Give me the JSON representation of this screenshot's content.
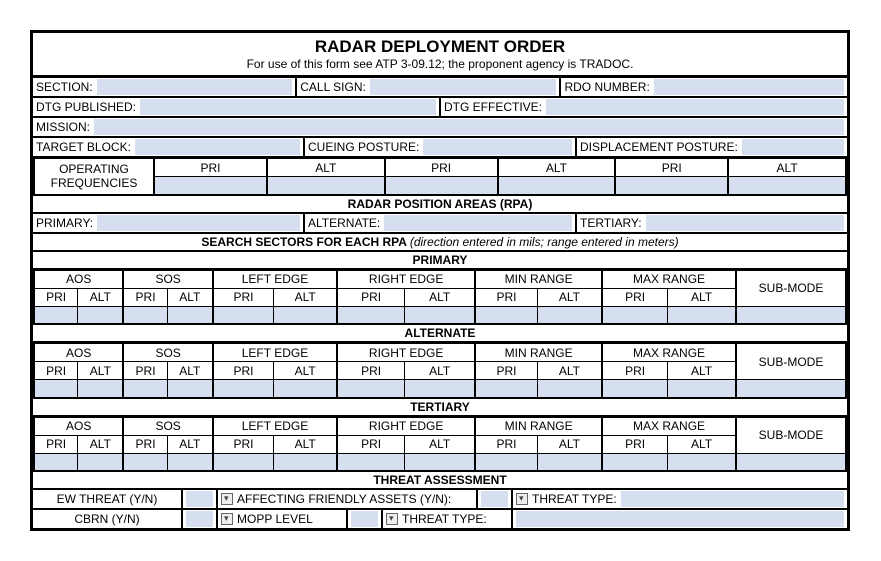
{
  "title": "RADAR DEPLOYMENT ORDER",
  "subtitle": "For use of this form see ATP 3-09.12; the proponent agency is TRADOC.",
  "r1": {
    "section": "SECTION:",
    "callsign": "CALL SIGN:",
    "rdo": "RDO NUMBER:"
  },
  "r2": {
    "pub": "DTG PUBLISHED:",
    "eff": "DTG EFFECTIVE:"
  },
  "r3": {
    "mission": "MISSION:"
  },
  "r4": {
    "target": "TARGET BLOCK:",
    "cue": "CUEING POSTURE:",
    "disp": "DISPLACEMENT POSTURE:"
  },
  "freq": {
    "label": "OPERATING\nFREQUENCIES",
    "pri": "PRI",
    "alt": "ALT"
  },
  "rpa": {
    "hdr": "RADAR POSITION AREAS (RPA)",
    "primary": "PRIMARY:",
    "alternate": "ALTERNATE:",
    "tertiary": "TERTIARY:"
  },
  "search": {
    "hdr": "SEARCH SECTORS FOR EACH RPA",
    "note": "(direction entered in mils; range entered in meters)",
    "sections": [
      "PRIMARY",
      "ALTERNATE",
      "TERTIARY"
    ],
    "cols": [
      "AOS",
      "SOS",
      "LEFT EDGE",
      "RIGHT EDGE",
      "MIN RANGE",
      "MAX RANGE",
      "SUB-MODE"
    ],
    "sub": [
      "PRI",
      "ALT"
    ]
  },
  "threat": {
    "hdr": "THREAT ASSESSMENT",
    "ew": "EW THREAT (Y/N)",
    "aff": "AFFECTING FRIENDLY ASSETS (Y/N):",
    "ttype": "THREAT TYPE:",
    "cbrn": "CBRN (Y/N)",
    "mopp": "MOPP LEVEL",
    "ttype2": "THREAT TYPE:"
  },
  "colors": {
    "field": "#d5dff0"
  }
}
